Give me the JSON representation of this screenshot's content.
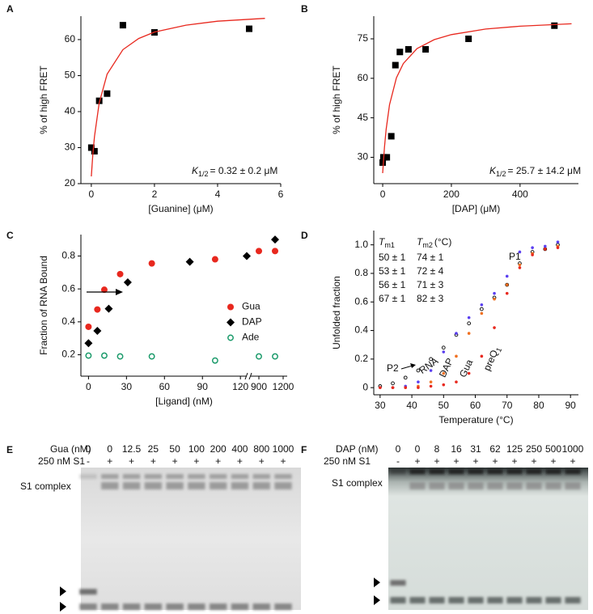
{
  "chart_data": [
    {
      "panel": "A",
      "type": "scatter",
      "xlabel": "[Guanine] (μM)",
      "ylabel": "% of high FRET",
      "xlim": [
        -0.33,
        6.0
      ],
      "ylim": [
        20,
        66.5
      ],
      "xticks": [
        0,
        2,
        4,
        6
      ],
      "yticks": [
        20,
        30,
        40,
        50,
        60
      ],
      "annotation": [
        "K",
        "1/2",
        "= 0.32 ± 0.2 μM"
      ],
      "series": [
        {
          "kind": "scatter",
          "marker": "square",
          "color": "#000000",
          "x": [
            0,
            0.1,
            0.25,
            0.5,
            1,
            2,
            5
          ],
          "values": [
            30,
            29,
            43,
            45,
            64,
            62,
            63
          ]
        },
        {
          "kind": "line",
          "color": "#e8281e",
          "x": [
            0,
            0.02,
            0.05,
            0.1,
            0.25,
            0.5,
            1,
            1.5,
            2,
            3,
            4,
            5.5
          ],
          "values": [
            22,
            24.7,
            28.3,
            33.1,
            42.4,
            50.4,
            57.2,
            60.3,
            62.1,
            64,
            65.1,
            65.9
          ]
        }
      ]
    },
    {
      "panel": "B",
      "type": "scatter",
      "xlabel": "[DAP] (μM)",
      "ylabel": "% of high FRET",
      "xlim": [
        -26,
        570
      ],
      "ylim": [
        20,
        83.6
      ],
      "xticks": [
        0,
        200,
        400
      ],
      "yticks": [
        30,
        45,
        60,
        75
      ],
      "annotation": [
        "K",
        "1/2",
        "= 25.7 ± 14.2 μM"
      ],
      "series": [
        {
          "kind": "scatter",
          "marker": "square",
          "color": "#000000",
          "x": [
            0,
            2,
            5,
            12,
            25,
            37,
            50,
            75,
            125,
            250,
            500
          ],
          "values": [
            28,
            30,
            30,
            30,
            38,
            65,
            70,
            71,
            71,
            75,
            80
          ]
        },
        {
          "kind": "line",
          "color": "#e8281e",
          "x": [
            0,
            5,
            10,
            20,
            40,
            60,
            100,
            150,
            200,
            300,
            400,
            550
          ],
          "values": [
            24,
            33.7,
            40.6,
            50,
            60.2,
            65.6,
            71.3,
            74.7,
            76.6,
            78.7,
            79.8,
            80.7
          ]
        }
      ]
    },
    {
      "panel": "C",
      "type": "scatter",
      "xlabel": "[Ligand] (nM)",
      "ylabel": "Fraction of RNA Bound",
      "xlim": [
        -6,
        1250
      ],
      "xbreak": [
        125,
        800
      ],
      "ylim": [
        0.07,
        0.93
      ],
      "xticks": [
        0,
        30,
        60,
        90,
        120,
        900,
        1200
      ],
      "yticks": [
        0.2,
        0.4,
        0.6,
        0.8
      ],
      "legend": "right",
      "series": [
        {
          "name": "Gua",
          "kind": "scatter",
          "marker": "circle",
          "color": "#e8281e",
          "x": [
            0,
            7,
            12.5,
            25,
            50,
            100,
            900,
            1100
          ],
          "values": [
            0.37,
            0.475,
            0.595,
            0.69,
            0.755,
            0.78,
            0.83,
            0.83
          ]
        },
        {
          "name": "DAP",
          "kind": "scatter",
          "marker": "diamond",
          "color": "#000000",
          "x": [
            0,
            7,
            16,
            31,
            80,
            125,
            1100
          ],
          "values": [
            0.27,
            0.345,
            0.48,
            0.64,
            0.765,
            0.8,
            0.9
          ]
        },
        {
          "name": "Ade",
          "kind": "scatter",
          "marker": "open-circle",
          "color": "#1a9a6a",
          "x": [
            0,
            12.5,
            25,
            50,
            100,
            900,
            1100
          ],
          "values": [
            0.195,
            0.195,
            0.19,
            0.19,
            0.165,
            0.19,
            0.19
          ]
        }
      ]
    },
    {
      "panel": "D",
      "type": "scatter",
      "xlabel": "Temperature (°C)",
      "ylabel": "Unfolded fraction",
      "xlim": [
        28,
        92.5
      ],
      "ylim": [
        -0.05,
        1.1
      ],
      "xticks": [
        30,
        40,
        50,
        60,
        70,
        80,
        90
      ],
      "yticks": [
        0,
        0.2,
        0.4,
        0.6,
        0.8,
        {
          "value": 1,
          "label": "1.0"
        }
      ],
      "annotations": [
        "P1",
        "P2"
      ],
      "table": {
        "header": [
          [
            "T",
            "m1"
          ],
          [
            "T",
            "m2",
            "(°C)"
          ]
        ],
        "rows": [
          [
            "50 ± 1",
            "74 ± 1"
          ],
          [
            "53 ± 1",
            "72 ± 4"
          ],
          [
            "56 ± 1",
            "71 ± 3"
          ],
          [
            "67 ± 1",
            "82 ± 3"
          ]
        ]
      },
      "series": [
        {
          "name": "RNA",
          "kind": "scatter",
          "marker": "open-dot",
          "color": "#000000",
          "x": [
            30,
            34,
            38,
            42,
            46,
            50,
            54,
            58,
            62,
            66,
            70,
            74,
            78,
            82,
            86
          ],
          "values": [
            0.01,
            0.03,
            0.07,
            0.12,
            0.2,
            0.28,
            0.37,
            0.45,
            0.55,
            0.63,
            0.72,
            0.87,
            0.95,
            0.97,
            1.0
          ]
        },
        {
          "name": "DAP",
          "kind": "scatter",
          "marker": "dot",
          "color": "#5a3ff0",
          "x": [
            30,
            34,
            38,
            42,
            46,
            50,
            54,
            58,
            62,
            66,
            70,
            74,
            78,
            82,
            86
          ],
          "values": [
            0,
            0,
            0.01,
            0.04,
            0.12,
            0.25,
            0.38,
            0.49,
            0.58,
            0.66,
            0.78,
            0.95,
            0.98,
            0.99,
            1.02
          ]
        },
        {
          "name": "Gua",
          "kind": "scatter",
          "marker": "dot",
          "color": "#f07020",
          "x": [
            30,
            34,
            38,
            42,
            46,
            50,
            54,
            58,
            62,
            66,
            70,
            74,
            78,
            82,
            86
          ],
          "values": [
            0,
            0,
            0,
            0.01,
            0.04,
            0.1,
            0.22,
            0.38,
            0.52,
            0.62,
            0.72,
            0.86,
            0.94,
            0.97,
            0.99
          ]
        },
        {
          "name": "preQ",
          "name_sub": "1",
          "kind": "scatter",
          "marker": "dot",
          "color": "#e8281e",
          "x": [
            30,
            34,
            38,
            42,
            46,
            50,
            54,
            58,
            62,
            66,
            70,
            74,
            78,
            82,
            86
          ],
          "values": [
            0,
            0,
            0,
            0,
            0.01,
            0.02,
            0.04,
            0.1,
            0.22,
            0.42,
            0.66,
            0.84,
            0.93,
            0.97,
            0.98
          ]
        }
      ]
    }
  ],
  "gels": [
    {
      "panel": "E",
      "concentration_label": "Gua (nM)",
      "concentrations": [
        "0",
        "0",
        "12.5",
        "25",
        "50",
        "100",
        "200",
        "400",
        "800",
        "1000"
      ],
      "protein_label": "250 nM S1",
      "protein": [
        "-",
        "+",
        "+",
        "+",
        "+",
        "+",
        "+",
        "+",
        "+",
        "+"
      ],
      "band_label": "S1 complex"
    },
    {
      "panel": "F",
      "concentration_label": "DAP (nM)",
      "concentrations": [
        "0",
        "0",
        "8",
        "16",
        "31",
        "62",
        "125",
        "250",
        "500",
        "1000"
      ],
      "protein_label": "250 nM S1",
      "protein": [
        "-",
        "+",
        "+",
        "+",
        "+",
        "+",
        "+",
        "+",
        "+",
        "+"
      ],
      "band_label": "S1 complex"
    }
  ]
}
